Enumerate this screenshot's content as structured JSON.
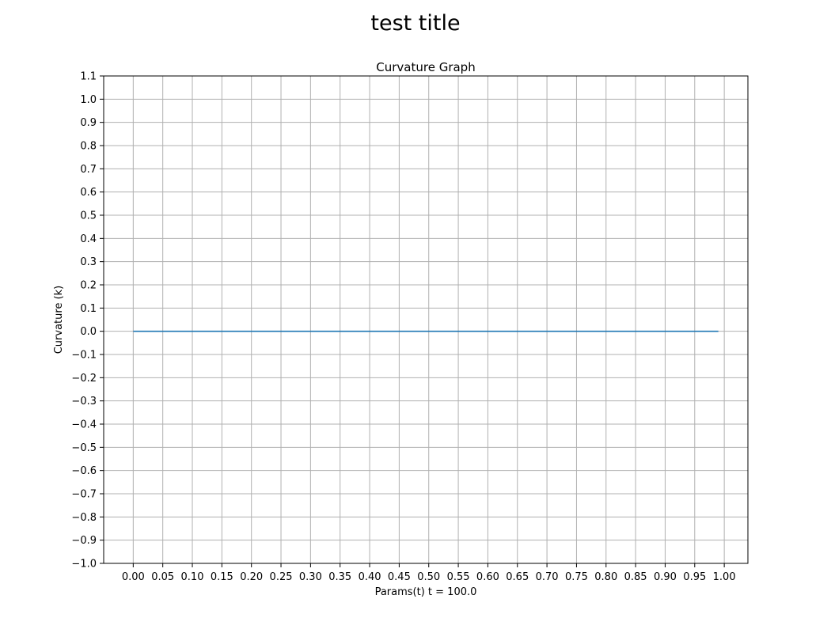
{
  "figure": {
    "suptitle": "test title"
  },
  "chart_data": {
    "type": "line",
    "title": "Curvature Graph",
    "xlabel": "Params(t) t = 100.0",
    "ylabel": "Curvature (k)",
    "xlim": [
      -0.05,
      1.04
    ],
    "ylim": [
      -1.0,
      1.1
    ],
    "grid": true,
    "x_ticks": [
      "0.00",
      "0.05",
      "0.10",
      "0.15",
      "0.20",
      "0.25",
      "0.30",
      "0.35",
      "0.40",
      "0.45",
      "0.50",
      "0.55",
      "0.60",
      "0.65",
      "0.70",
      "0.75",
      "0.80",
      "0.85",
      "0.90",
      "0.95",
      "1.00"
    ],
    "y_ticks": [
      "−1.0",
      "−0.9",
      "−0.8",
      "−0.7",
      "−0.6",
      "−0.5",
      "−0.4",
      "−0.3",
      "−0.2",
      "−0.1",
      "0.0",
      "0.1",
      "0.2",
      "0.3",
      "0.4",
      "0.5",
      "0.6",
      "0.7",
      "0.8",
      "0.9",
      "1.0",
      "1.1"
    ],
    "series": [
      {
        "color": "#1f77b4",
        "x": [
          0.0,
          0.99
        ],
        "y": [
          0.0,
          0.0
        ]
      }
    ]
  }
}
